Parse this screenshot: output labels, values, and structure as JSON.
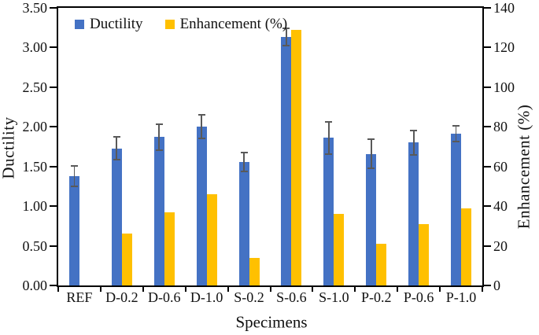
{
  "chart_data": {
    "type": "bar",
    "title": "",
    "categories": [
      "REF",
      "D-0.2",
      "D-0.6",
      "D-1.0",
      "S-0.2",
      "S-0.6",
      "S-1.0",
      "P-0.2",
      "P-0.6",
      "P-1.0"
    ],
    "series": [
      {
        "name": "Ductility",
        "axis": "left",
        "color": "#4472C4",
        "values": [
          1.38,
          1.73,
          1.87,
          2.0,
          1.56,
          3.13,
          1.86,
          1.66,
          1.8,
          1.91
        ],
        "error_bars": [
          0.14,
          0.15,
          0.17,
          0.16,
          0.13,
          0.12,
          0.21,
          0.19,
          0.16,
          0.11
        ]
      },
      {
        "name": "Enhancement (%)",
        "axis": "right",
        "color": "#FFC000",
        "values": [
          null,
          26,
          37,
          46,
          14,
          129,
          36,
          21,
          31,
          39
        ],
        "error_bars": null
      }
    ],
    "xlabel": "Specimens",
    "ylabel_left": "Ductility",
    "ylabel_right": "Enhancement (%)",
    "ylim_left": [
      0,
      3.5
    ],
    "ylim_right": [
      0,
      140
    ],
    "yticks_left": [
      "0.00",
      "0.50",
      "1.00",
      "1.50",
      "2.00",
      "2.50",
      "3.00",
      "3.50"
    ],
    "yticks_right": [
      "0",
      "20",
      "40",
      "60",
      "80",
      "100",
      "120",
      "140"
    ],
    "grid": false,
    "legend_position": "top-left-inside",
    "error_bar_color": "#595959",
    "axis_color": "#000000",
    "background_color": "#FFFFFF"
  }
}
